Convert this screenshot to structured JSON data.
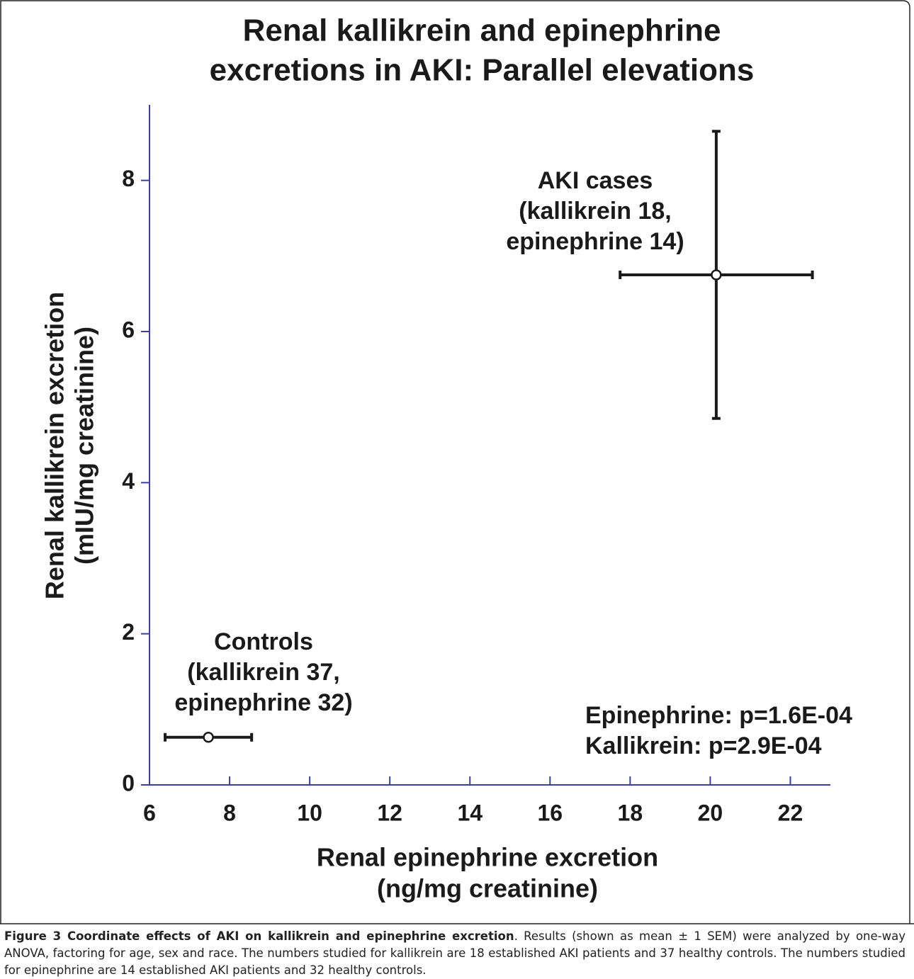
{
  "chart_data": {
    "type": "scatter",
    "title": [
      "Renal kallikrein and epinephrine",
      "excretions in AKI: Parallel elevations"
    ],
    "x_label": [
      "Renal epinephrine excretion",
      "(ng/mg creatinine)"
    ],
    "y_label": [
      "Renal kallikrein excretion",
      "(mIU/mg creatinine)"
    ],
    "xlim": [
      6,
      23
    ],
    "xticks": [
      6,
      8,
      10,
      12,
      14,
      16,
      18,
      20,
      22
    ],
    "ylim": [
      0,
      9
    ],
    "yticks": [
      0,
      2,
      4,
      6,
      8
    ],
    "axis_color": "#3a3fa0",
    "color": "#1a1a1a",
    "points": [
      {
        "x": 20.15,
        "y": 6.75,
        "xerr": 2.4,
        "yerr": 1.9,
        "label": [
          "AKI cases",
          "(kallikrein 18,",
          "epinephrine 14)"
        ]
      },
      {
        "x": 7.47,
        "y": 0.63,
        "xerr": 1.08,
        "yerr": 0.03,
        "label": [
          "Controls",
          "(kallikrein 37,",
          "epinephrine 32)"
        ]
      }
    ],
    "annotations": [
      "Epinephrine: p=1.6E-04",
      "Kallikrein: p=2.9E-04"
    ]
  },
  "caption": {
    "label": "Figure 3 Coordinate effects of AKI on kallikrein and epinephrine excretion",
    "text": ". Results (shown as mean ± 1 SEM) were analyzed by one-way ANOVA, factoring for age, sex and race. The numbers studied for kallikrein are 18 established AKI patients and 37 healthy controls. The numbers studied for epinephrine are 14 established AKI patients and 32 healthy controls."
  }
}
